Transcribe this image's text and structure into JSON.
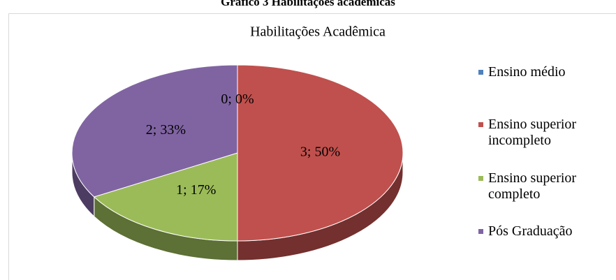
{
  "caption": "Gráfico 3 Habilitações acadêmicas",
  "chart_data": {
    "type": "pie",
    "title": "Habilitações Acadêmica",
    "categories": [
      "Ensino médio",
      "Ensino superior incompleto",
      "Ensino superior completo",
      "Pós Graduação"
    ],
    "values": [
      0,
      3,
      1,
      2
    ],
    "value_labels": [
      "0; 0%",
      "3; 50%",
      "1; 17%",
      "2; 33%"
    ],
    "colors": [
      "#4f81bd",
      "#c0504d",
      "#9bbb59",
      "#8064a2"
    ],
    "legend": "right"
  }
}
